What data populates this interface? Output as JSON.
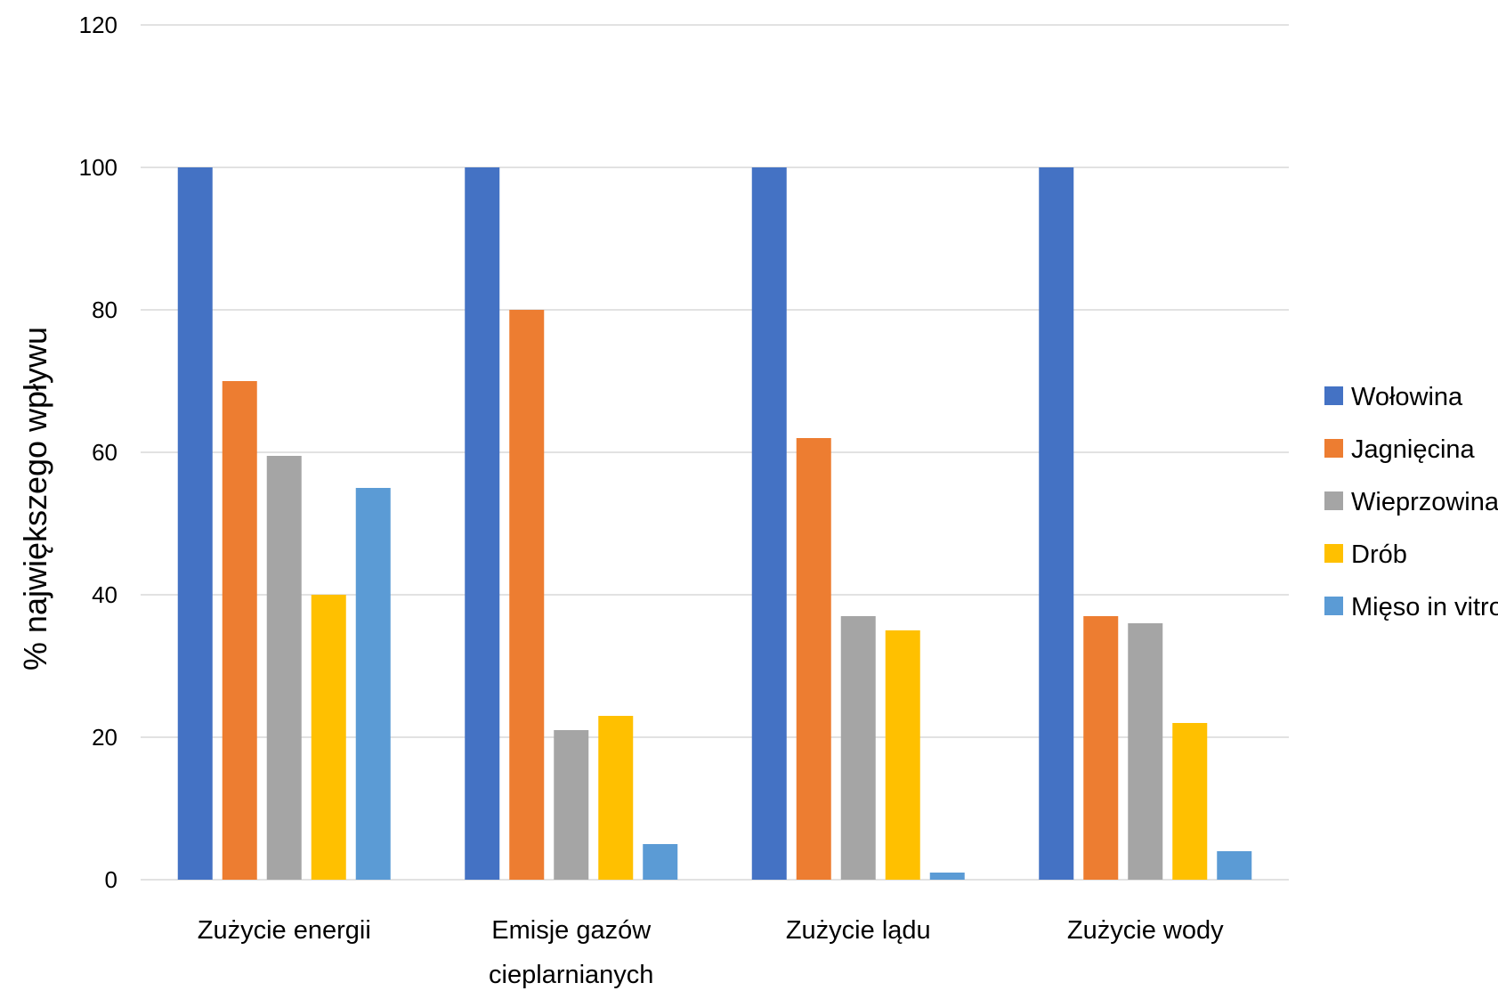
{
  "chart_data": {
    "type": "bar",
    "title": "",
    "xlabel": "",
    "ylabel": "% największego wpływu",
    "ylim": [
      0,
      120
    ],
    "yticks": [
      0,
      20,
      40,
      60,
      80,
      100,
      120
    ],
    "grid": true,
    "legend_position": "right",
    "categories": [
      [
        "Zużycie energii"
      ],
      [
        "Emisje gazów",
        "cieplarnianych"
      ],
      [
        "Zużycie lądu"
      ],
      [
        "Zużycie wody"
      ]
    ],
    "series": [
      {
        "name": "Wołowina",
        "color": "#4472c4",
        "values": [
          100,
          100,
          100,
          100
        ]
      },
      {
        "name": "Jagnięcina",
        "color": "#ed7d31",
        "values": [
          70,
          80,
          62,
          37
        ]
      },
      {
        "name": "Wieprzowina",
        "color": "#a5a5a5",
        "values": [
          59.5,
          21,
          37,
          36
        ]
      },
      {
        "name": "Drób",
        "color": "#ffc000",
        "values": [
          40,
          23,
          35,
          22
        ]
      },
      {
        "name": "Mięso in vitro",
        "color": "#5b9bd5",
        "values": [
          55,
          5,
          1,
          4
        ]
      }
    ]
  }
}
